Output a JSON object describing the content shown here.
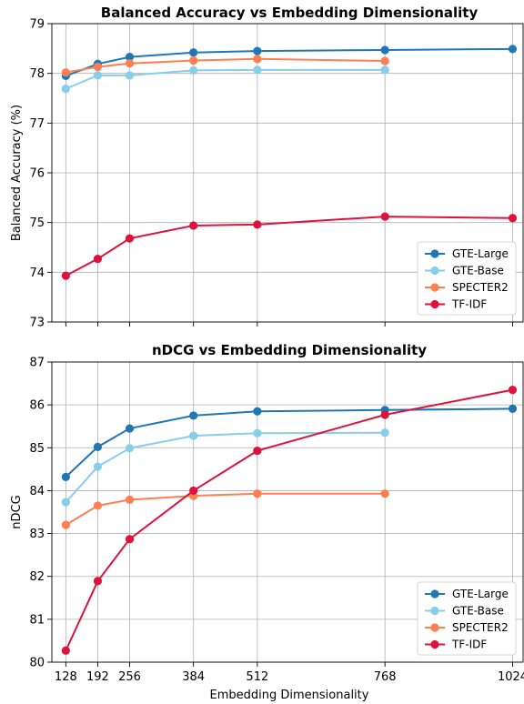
{
  "colors": {
    "gte_large": "#1f77b4",
    "gte_base": "#87ceeb",
    "specter2": "#ff7f50",
    "tfidf": "#dc143c"
  },
  "chart_data": [
    {
      "type": "line",
      "title": "Balanced Accuracy vs Embedding Dimensionality",
      "xlabel": "",
      "ylabel": "Balanced Accuracy (%)",
      "x_ticks": [
        128,
        192,
        256,
        384,
        512,
        768,
        1024
      ],
      "show_x_tick_labels": false,
      "xlim": [
        100,
        1045
      ],
      "ylim": [
        73,
        79
      ],
      "y_ticks": [
        73,
        74,
        75,
        76,
        77,
        78,
        79
      ],
      "grid": true,
      "legend_position": "lower-right",
      "series": [
        {
          "name": "GTE-Large",
          "color_key": "gte_large",
          "x": [
            128,
            192,
            256,
            384,
            512,
            768,
            1024
          ],
          "y": [
            77.95,
            78.19,
            78.33,
            78.42,
            78.45,
            78.47,
            78.49
          ]
        },
        {
          "name": "GTE-Base",
          "color_key": "gte_base",
          "x": [
            128,
            192,
            256,
            384,
            512,
            768
          ],
          "y": [
            77.69,
            77.96,
            77.96,
            78.06,
            78.07,
            78.07
          ]
        },
        {
          "name": "SPECTER2",
          "color_key": "specter2",
          "x": [
            128,
            192,
            256,
            384,
            512,
            768
          ],
          "y": [
            78.02,
            78.13,
            78.2,
            78.26,
            78.29,
            78.25
          ]
        },
        {
          "name": "TF-IDF",
          "color_key": "tfidf",
          "x": [
            128,
            192,
            256,
            384,
            512,
            768,
            1024
          ],
          "y": [
            73.93,
            74.27,
            74.68,
            74.94,
            74.96,
            75.12,
            75.09
          ]
        }
      ]
    },
    {
      "type": "line",
      "title": "nDCG vs Embedding Dimensionality",
      "xlabel": "Embedding Dimensionality",
      "ylabel": "nDCG",
      "x_ticks": [
        128,
        192,
        256,
        384,
        512,
        768,
        1024
      ],
      "show_x_tick_labels": true,
      "xlim": [
        100,
        1045
      ],
      "ylim": [
        80,
        87
      ],
      "y_ticks": [
        80,
        81,
        82,
        83,
        84,
        85,
        86,
        87
      ],
      "grid": true,
      "legend_position": "lower-right",
      "series": [
        {
          "name": "GTE-Large",
          "color_key": "gte_large",
          "x": [
            128,
            192,
            256,
            384,
            512,
            768,
            1024
          ],
          "y": [
            84.32,
            85.02,
            85.45,
            85.75,
            85.85,
            85.88,
            85.91
          ]
        },
        {
          "name": "GTE-Base",
          "color_key": "gte_base",
          "x": [
            128,
            192,
            256,
            384,
            512,
            768
          ],
          "y": [
            83.73,
            84.56,
            84.99,
            85.28,
            85.34,
            85.35
          ]
        },
        {
          "name": "SPECTER2",
          "color_key": "specter2",
          "x": [
            128,
            192,
            256,
            384,
            512,
            768
          ],
          "y": [
            83.2,
            83.65,
            83.79,
            83.88,
            83.93,
            83.93
          ]
        },
        {
          "name": "TF-IDF",
          "color_key": "tfidf",
          "x": [
            128,
            192,
            256,
            384,
            512,
            768,
            1024
          ],
          "y": [
            80.27,
            81.89,
            82.87,
            84.0,
            84.93,
            85.77,
            86.35
          ]
        }
      ]
    }
  ]
}
